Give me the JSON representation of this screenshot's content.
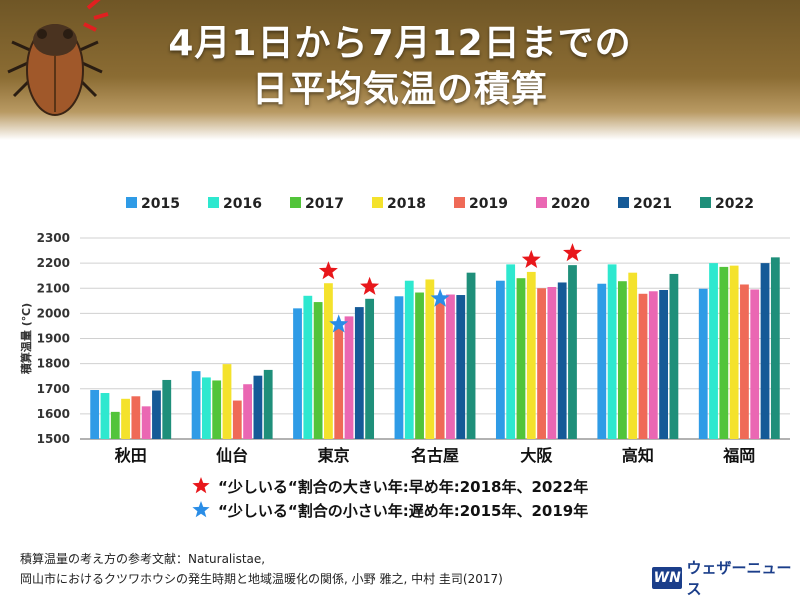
{
  "title": {
    "line1": "4月1日から7月12日までの",
    "line2": "日平均気温の積算"
  },
  "chart_data": {
    "type": "bar",
    "ylabel": "積算温量 (℃)",
    "ylim": [
      1500,
      2300
    ],
    "yticks": [
      1500,
      1600,
      1700,
      1800,
      1900,
      2000,
      2100,
      2200,
      2300
    ],
    "categories": [
      "秋田",
      "仙台",
      "東京",
      "名古屋",
      "大阪",
      "高知",
      "福岡"
    ],
    "series": [
      {
        "name": "2015",
        "color": "#2f9be6",
        "values": [
          1695,
          1770,
          2020,
          2068,
          2130,
          2118,
          2098
        ]
      },
      {
        "name": "2016",
        "color": "#2ee8cf",
        "values": [
          1683,
          1745,
          2070,
          2130,
          2195,
          2195,
          2200
        ]
      },
      {
        "name": "2017",
        "color": "#52c43a",
        "values": [
          1608,
          1733,
          2045,
          2083,
          2140,
          2128,
          2185
        ]
      },
      {
        "name": "2018",
        "color": "#f4e22c",
        "values": [
          1660,
          1798,
          2120,
          2135,
          2165,
          2162,
          2190
        ]
      },
      {
        "name": "2019",
        "color": "#ef6a57",
        "values": [
          1670,
          1653,
          1940,
          2043,
          2100,
          2078,
          2115
        ]
      },
      {
        "name": "2020",
        "color": "#ea67b3",
        "values": [
          1630,
          1718,
          1988,
          2075,
          2105,
          2088,
          2095
        ]
      },
      {
        "name": "2021",
        "color": "#155a97",
        "values": [
          1693,
          1752,
          2025,
          2073,
          2123,
          2093,
          2200
        ]
      },
      {
        "name": "2022",
        "color": "#1f8f7a",
        "values": [
          1735,
          1775,
          2058,
          2162,
          2192,
          2157,
          2223
        ]
      }
    ],
    "markers": [
      {
        "type": "red-star",
        "category": "東京",
        "series": "2018"
      },
      {
        "type": "red-star",
        "category": "東京",
        "series": "2022"
      },
      {
        "type": "blue-star",
        "category": "東京",
        "series": "2019"
      },
      {
        "type": "red-star",
        "category": "大阪",
        "series": "2018"
      },
      {
        "type": "red-star",
        "category": "大阪",
        "series": "2022"
      },
      {
        "type": "blue-star",
        "category": "名古屋",
        "series": "2019"
      }
    ],
    "legend_position": "top",
    "grid": true
  },
  "annotations": {
    "red": "“少しいる“割合の大きい年:早め年:2018年、2022年",
    "blue": "“少しいる“割合の小さい年:遅め年:2015年、2019年"
  },
  "colors": {
    "red_star": "#e8171b",
    "blue_star": "#2a8de6"
  },
  "footnote": {
    "line1": "積算温量の考え方の参考文献：Naturalistae,",
    "line2": "岡山市におけるクツワホウシの発生時期と地域温暖化の関係, 小野 雅之, 中村 圭司(2017)"
  },
  "logo": {
    "mark": "WN",
    "text": "ウェザーニュース"
  }
}
